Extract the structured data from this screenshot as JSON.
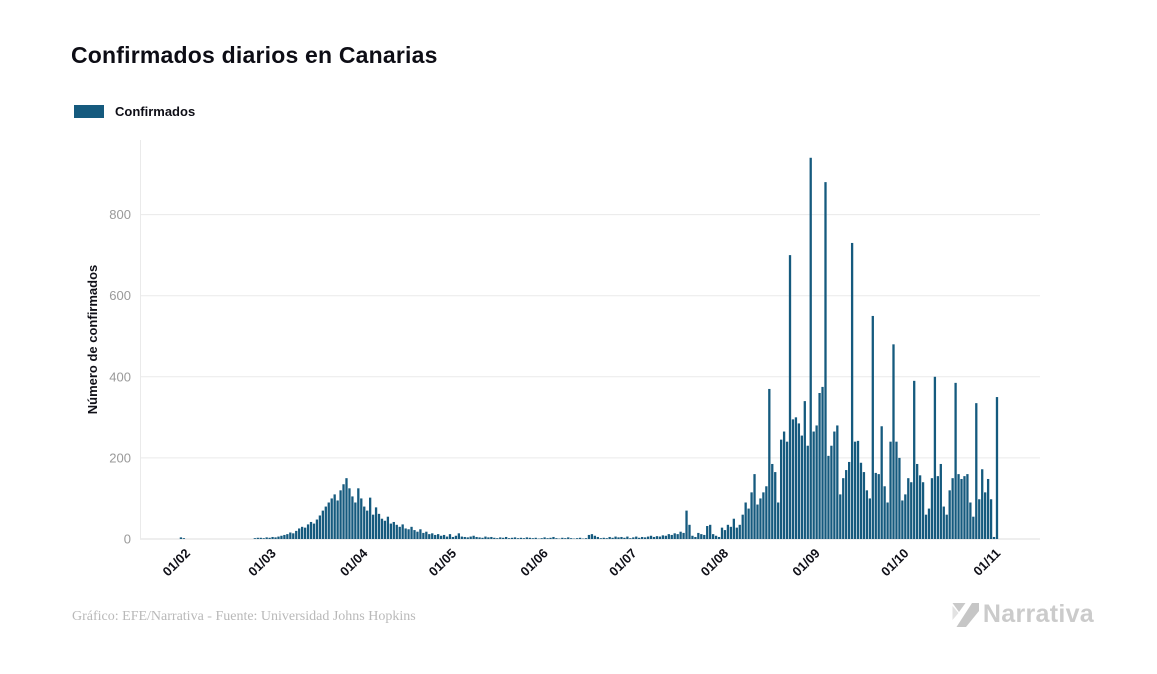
{
  "title": "Confirmados diarios en Canarias",
  "legend": {
    "label": "Confirmados",
    "color": "#155a7e"
  },
  "footer": {
    "credit": "Gráfico: EFE/Narrativa - Fuente: Universidad Johns Hopkins"
  },
  "logo": {
    "text": "Narrativa"
  },
  "chart_data": {
    "type": "bar",
    "title": "Confirmados diarios en Canarias",
    "series_name": "Confirmados",
    "xlabel": "",
    "ylabel": "Número de confirmados",
    "y_ticks": [
      0,
      200,
      400,
      600,
      800
    ],
    "ylim": [
      0,
      985
    ],
    "bar_color": "#155a7e",
    "grid": "horizontal",
    "legend_position": "top-left",
    "x_tick_labels": [
      "01/02",
      "01/03",
      "01/04",
      "01/05",
      "01/06",
      "01/07",
      "01/08",
      "01/09",
      "01/10",
      "01/11"
    ],
    "months": [
      {
        "label": "01/02",
        "values": [
          0,
          0,
          4,
          2,
          0,
          0,
          0,
          0,
          0,
          0,
          0,
          0,
          0,
          0,
          0,
          0,
          0,
          0,
          0,
          0,
          0,
          0,
          0,
          0,
          0,
          0,
          0,
          2,
          3
        ]
      },
      {
        "label": "01/03",
        "values": [
          3,
          2,
          4,
          3,
          5,
          4,
          6,
          8,
          10,
          12,
          16,
          14,
          20,
          26,
          30,
          28,
          36,
          42,
          38,
          48,
          58,
          70,
          80,
          90,
          100,
          110,
          95,
          120,
          135,
          150,
          125
        ]
      },
      {
        "label": "01/04",
        "values": [
          105,
          90,
          125,
          100,
          80,
          70,
          102,
          60,
          78,
          62,
          50,
          45,
          55,
          38,
          42,
          35,
          30,
          36,
          26,
          24,
          30,
          22,
          18,
          24,
          15,
          18,
          12,
          14,
          10,
          12
        ]
      },
      {
        "label": "01/05",
        "values": [
          8,
          10,
          6,
          12,
          5,
          8,
          14,
          6,
          5,
          4,
          6,
          8,
          5,
          4,
          3,
          6,
          4,
          5,
          3,
          2,
          4,
          3,
          5,
          2,
          3,
          4,
          2,
          3,
          2,
          4,
          3
        ]
      },
      {
        "label": "01/06",
        "values": [
          2,
          3,
          1,
          2,
          4,
          2,
          3,
          5,
          2,
          1,
          3,
          2,
          4,
          2,
          1,
          2,
          3,
          1,
          2,
          10,
          12,
          8,
          5,
          2,
          3,
          2,
          5,
          3,
          6,
          4
        ]
      },
      {
        "label": "01/07",
        "values": [
          5,
          3,
          6,
          2,
          4,
          6,
          3,
          5,
          4,
          6,
          8,
          5,
          7,
          6,
          9,
          8,
          12,
          10,
          14,
          12,
          18,
          15,
          70,
          35,
          8,
          5,
          15,
          12,
          10,
          32,
          35
        ]
      },
      {
        "label": "01/08",
        "values": [
          12,
          8,
          5,
          28,
          22,
          35,
          30,
          50,
          28,
          35,
          60,
          90,
          75,
          115,
          160,
          85,
          100,
          115,
          130,
          370,
          185,
          165,
          90,
          245,
          265,
          240,
          700,
          295,
          300,
          285,
          255
        ]
      },
      {
        "label": "01/09",
        "values": [
          340,
          230,
          940,
          265,
          280,
          360,
          375,
          880,
          205,
          230,
          265,
          280,
          110,
          150,
          170,
          190,
          730,
          240,
          242,
          188,
          165,
          120,
          100,
          550,
          163,
          160,
          278,
          130,
          90,
          240
        ]
      },
      {
        "label": "01/10",
        "values": [
          480,
          240,
          200,
          95,
          110,
          150,
          140,
          390,
          185,
          157,
          140,
          60,
          75,
          150,
          400,
          155,
          185,
          80,
          60,
          120,
          150,
          385,
          160,
          148,
          155,
          160,
          90,
          55,
          335,
          98,
          172
        ]
      },
      {
        "label": "01/11",
        "values": [
          115,
          148,
          98,
          5,
          350
        ]
      }
    ]
  }
}
